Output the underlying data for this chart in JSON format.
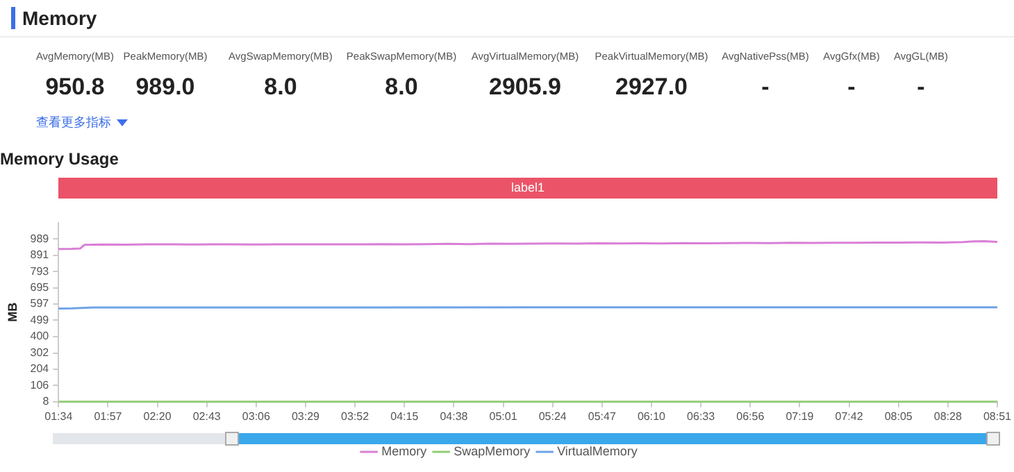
{
  "chart_data": [
    {
      "type": "other",
      "title": "Memory",
      "annotations": [
        "AvgMemory(MB)",
        "950.8",
        "PeakMemory(MB)",
        "989.0",
        "AvgSwapMemory(MB)",
        "8.0",
        "PeakSwapMemory(MB)",
        "8.0",
        "AvgVirtualMemory(MB)",
        "2905.9",
        "PeakVirtualMemory(MB)",
        "2927.0",
        "AvgNativePss(MB)",
        "-",
        "AvgGfx(MB)",
        "-",
        "AvgGL(MB)",
        "-",
        "查看更多指标"
      ]
    },
    {
      "type": "line",
      "title": "Memory Usage",
      "ylabel": "MB",
      "legend": "bottom",
      "grid": false,
      "marker": "none",
      "line_style": "solid",
      "xlim": [
        94,
        531
      ],
      "xticks": [
        {
          "value": 94,
          "label": "01:34"
        },
        {
          "value": 117,
          "label": "01:57"
        },
        {
          "value": 140,
          "label": "02:20"
        },
        {
          "value": 163,
          "label": "02:43"
        },
        {
          "value": 186,
          "label": "03:06"
        },
        {
          "value": 209,
          "label": "03:29"
        },
        {
          "value": 232,
          "label": "03:52"
        },
        {
          "value": 255,
          "label": "04:15"
        },
        {
          "value": 278,
          "label": "04:38"
        },
        {
          "value": 301,
          "label": "05:01"
        },
        {
          "value": 324,
          "label": "05:24"
        },
        {
          "value": 347,
          "label": "05:47"
        },
        {
          "value": 370,
          "label": "06:10"
        },
        {
          "value": 393,
          "label": "06:33"
        },
        {
          "value": 416,
          "label": "06:56"
        },
        {
          "value": 439,
          "label": "07:19"
        },
        {
          "value": 462,
          "label": "07:42"
        },
        {
          "value": 485,
          "label": "08:05"
        },
        {
          "value": 508,
          "label": "08:28"
        },
        {
          "value": 531,
          "label": "08:51"
        }
      ],
      "ylim": [
        8,
        1087
      ],
      "yticks": [
        8,
        106,
        204,
        302,
        400,
        499,
        597,
        695,
        793,
        891,
        989
      ],
      "annotations": [
        "label1"
      ],
      "series": [
        {
          "name": "Memory",
          "color": "#d97fd6",
          "x": [
            94,
            100,
            104,
            106,
            115,
            125,
            135,
            145,
            155,
            165,
            175,
            185,
            195,
            205,
            215,
            225,
            235,
            245,
            255,
            265,
            275,
            285,
            295,
            305,
            315,
            325,
            335,
            345,
            355,
            365,
            375,
            385,
            395,
            405,
            415,
            425,
            435,
            445,
            455,
            465,
            475,
            485,
            495,
            505,
            515,
            520,
            525,
            531
          ],
          "values": [
            928,
            929,
            931,
            953,
            955,
            954,
            956,
            957,
            955,
            956,
            957,
            955,
            957,
            956,
            956,
            957,
            956,
            958,
            957,
            958,
            960,
            958,
            961,
            960,
            961,
            962,
            961,
            963,
            962,
            963,
            962,
            964,
            963,
            964,
            965,
            964,
            966,
            965,
            966,
            966,
            967,
            967,
            968,
            967,
            970,
            974,
            975,
            971
          ]
        },
        {
          "name": "SwapMemory",
          "color": "#91cc75",
          "x": [
            94,
            531
          ],
          "values": [
            8,
            8
          ]
        },
        {
          "name": "VirtualMemory",
          "color": "#6fa3e8",
          "x": [
            94,
            100,
            110,
            531
          ],
          "values": [
            570,
            571,
            576,
            577
          ]
        }
      ]
    }
  ]
}
